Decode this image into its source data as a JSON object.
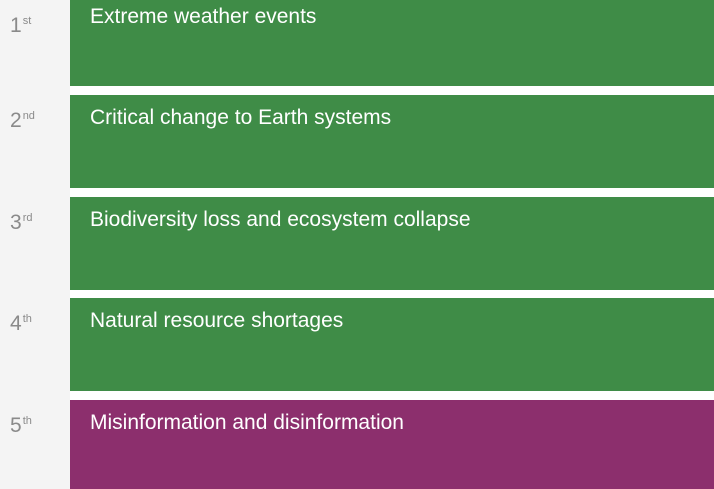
{
  "ranks": [
    {
      "number": 1,
      "suffix": "st",
      "label": "Extreme weather events"
    },
    {
      "number": 2,
      "suffix": "nd",
      "label": "Critical change to Earth systems"
    },
    {
      "number": 3,
      "suffix": "rd",
      "label": "Biodiversity loss and ecosystem collapse"
    },
    {
      "number": 4,
      "suffix": "th",
      "label": "Natural resource shortages"
    },
    {
      "number": 5,
      "suffix": "th",
      "label": "Misinformation and disinformation"
    }
  ]
}
